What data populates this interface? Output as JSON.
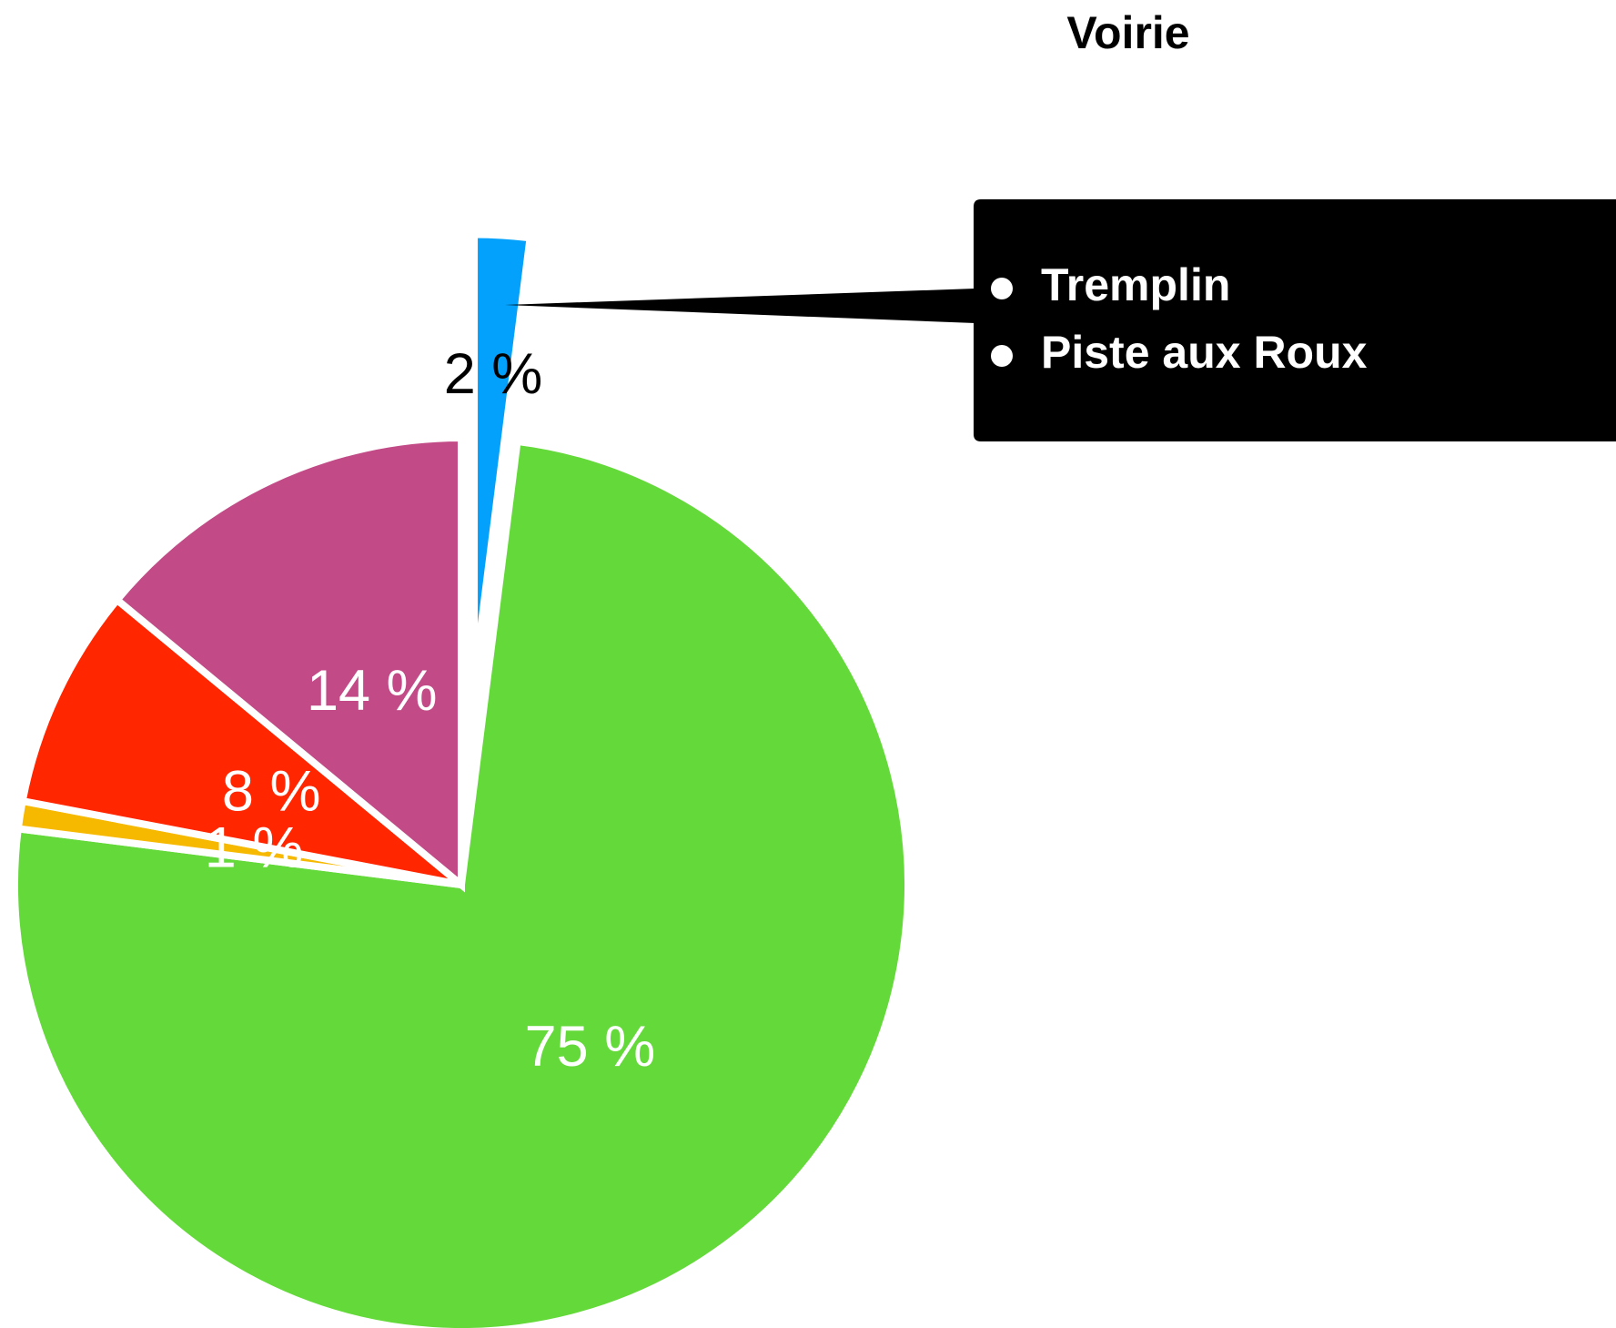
{
  "chart_data": {
    "type": "pie",
    "title": "Voirie",
    "values": [
      2,
      75,
      1,
      8,
      14
    ],
    "value_labels": [
      "2 %",
      "75 %",
      "1 %",
      "8 %",
      "14 %"
    ],
    "colors": [
      "#03a1fc",
      "#64d93a",
      "#f7b900",
      "#ff2600",
      "#c24a86"
    ],
    "explode": [
      true,
      false,
      false,
      false,
      false
    ],
    "tooltip": {
      "items": [
        "Tremplin",
        "Piste aux Roux"
      ]
    }
  }
}
